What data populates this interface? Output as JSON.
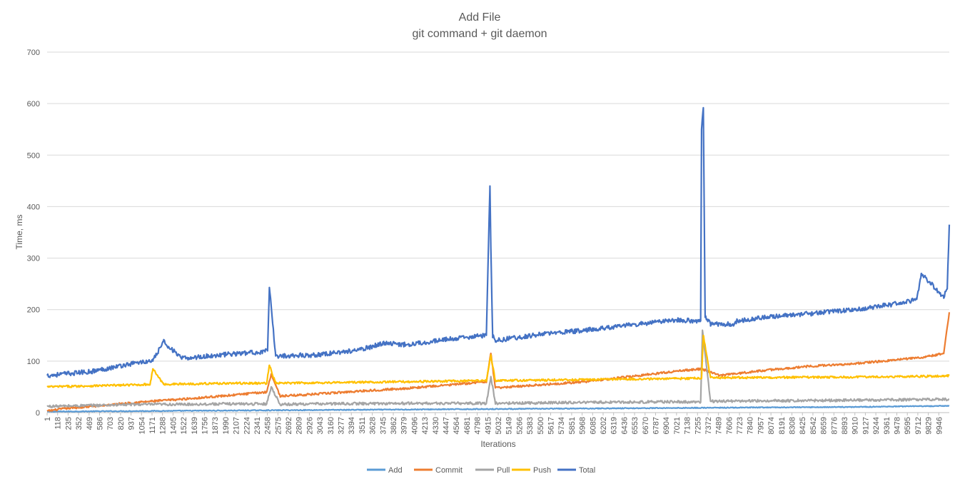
{
  "chart_data": {
    "type": "line",
    "title": "Add File",
    "subtitle": "git command + git daemon",
    "xlabel": "Iterations",
    "ylabel": "Time, ms",
    "ylim": [
      0,
      700
    ],
    "yticks": [
      0,
      100,
      200,
      300,
      400,
      500,
      600,
      700
    ],
    "grid": true,
    "legend_position": "bottom",
    "x_range": [
      1,
      10063
    ],
    "x_tick_labels": [
      "1",
      "118",
      "235",
      "352",
      "469",
      "586",
      "703",
      "820",
      "937",
      "1054",
      "1171",
      "1288",
      "1405",
      "1522",
      "1639",
      "1756",
      "1873",
      "1990",
      "2107",
      "2224",
      "2341",
      "2458",
      "2575",
      "2692",
      "2809",
      "2926",
      "3043",
      "3160",
      "3277",
      "3394",
      "3511",
      "3628",
      "3745",
      "3862",
      "3979",
      "4096",
      "4213",
      "4330",
      "4447",
      "4564",
      "4681",
      "4798",
      "4915",
      "5032",
      "5149",
      "5266",
      "5383",
      "5500",
      "5617",
      "5734",
      "5851",
      "5968",
      "6085",
      "6202",
      "6319",
      "6436",
      "6553",
      "6670",
      "6787",
      "6904",
      "7021",
      "7138",
      "7255",
      "7372",
      "7489",
      "7606",
      "7723",
      "7840",
      "7957",
      "8074",
      "8191",
      "8308",
      "8425",
      "8542",
      "8659",
      "8776",
      "8893",
      "9010",
      "9127",
      "9244",
      "9361",
      "9478",
      "9595",
      "9712",
      "9829",
      "9946"
    ],
    "series": [
      {
        "name": "Add",
        "color": "#5B9BD5",
        "x": [
          1,
          1000,
          2000,
          3000,
          4000,
          5000,
          6000,
          7000,
          8000,
          9000,
          10063
        ],
        "y": [
          2,
          3,
          4,
          5,
          6,
          7,
          8,
          9,
          10,
          11,
          13
        ]
      },
      {
        "name": "Commit",
        "color": "#ED7D31",
        "x": [
          1,
          200,
          500,
          1000,
          1500,
          2000,
          2450,
          2500,
          2600,
          3000,
          3500,
          4000,
          4500,
          4900,
          4950,
          5000,
          5500,
          6000,
          6500,
          7000,
          7300,
          7500,
          8000,
          8500,
          9000,
          9500,
          9800,
          10000,
          10063
        ],
        "y": [
          3,
          8,
          12,
          20,
          26,
          33,
          40,
          75,
          32,
          36,
          42,
          47,
          54,
          60,
          115,
          48,
          54,
          60,
          70,
          80,
          85,
          72,
          82,
          90,
          95,
          103,
          108,
          115,
          195
        ]
      },
      {
        "name": "Pull",
        "color": "#A5A5A5",
        "x": [
          1,
          500,
          1000,
          1500,
          2000,
          2450,
          2500,
          2600,
          3000,
          4000,
          4900,
          4950,
          5000,
          6000,
          7000,
          7290,
          7310,
          7400,
          8000,
          9000,
          10063
        ],
        "y": [
          12,
          14,
          16,
          16,
          17,
          17,
          50,
          16,
          17,
          18,
          18,
          70,
          18,
          20,
          21,
          20,
          160,
          22,
          23,
          24,
          26
        ]
      },
      {
        "name": "Push",
        "color": "#FFC000",
        "x": [
          1,
          500,
          1000,
          1150,
          1180,
          1300,
          2000,
          2450,
          2480,
          2550,
          3000,
          4000,
          4900,
          4950,
          5000,
          6000,
          7000,
          7300,
          7320,
          7400,
          8000,
          9000,
          10000,
          10063
        ],
        "y": [
          50,
          52,
          54,
          55,
          85,
          55,
          57,
          57,
          92,
          57,
          58,
          60,
          62,
          112,
          62,
          64,
          66,
          67,
          150,
          68,
          68,
          69,
          71,
          72
        ]
      },
      {
        "name": "Total",
        "color": "#4472C4",
        "x": [
          1,
          500,
          1000,
          1180,
          1300,
          1500,
          2000,
          2400,
          2460,
          2480,
          2550,
          3000,
          3500,
          3750,
          4000,
          4500,
          4900,
          4940,
          4950,
          4970,
          5000,
          5500,
          6000,
          6500,
          7000,
          7290,
          7300,
          7320,
          7340,
          7400,
          7650,
          7700,
          8000,
          8500,
          9000,
          9500,
          9700,
          9750,
          10000,
          10040,
          10063
        ],
        "y": [
          72,
          80,
          97,
          100,
          138,
          105,
          113,
          118,
          120,
          243,
          110,
          112,
          122,
          135,
          132,
          143,
          150,
          440,
          320,
          150,
          140,
          152,
          160,
          170,
          180,
          178,
          550,
          592,
          185,
          172,
          172,
          178,
          185,
          192,
          200,
          212,
          220,
          270,
          225,
          240,
          365
        ]
      }
    ]
  }
}
